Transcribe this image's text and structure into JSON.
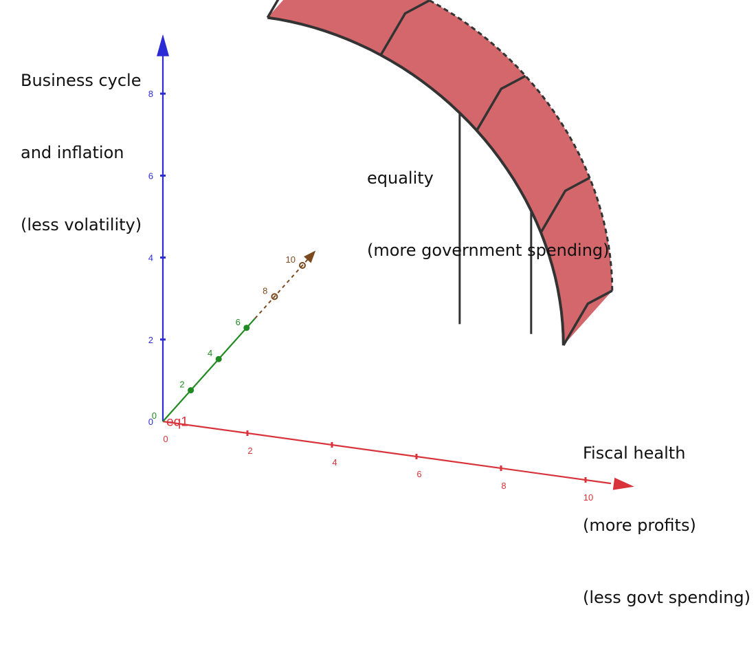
{
  "chart_data": {
    "type": "surface3d",
    "title": "",
    "annotations": {
      "z_axis_label": [
        "Business cycle",
        "and inflation",
        "(less volatility)"
      ],
      "y_axis_label": [
        "equality",
        "(more government spending)"
      ],
      "x_axis_label": [
        "Fiscal health",
        "(more profits)",
        "(less govt spending)"
      ],
      "object_label": "eq1"
    },
    "axes": {
      "x": {
        "color": "#d9323a",
        "ticks": [
          "0",
          "2",
          "4",
          "6",
          "8",
          "10"
        ],
        "range": [
          0,
          10.6
        ]
      },
      "y": {
        "color": "#1f8a1f",
        "ticks": [
          "0",
          "2",
          "4",
          "6"
        ],
        "range": [
          0,
          6.6
        ]
      },
      "y_hidden": {
        "color": "#7a4a1e",
        "ticks": [
          "8",
          "10"
        ],
        "range": [
          6.6,
          10.6
        ]
      },
      "z": {
        "color": "#2b2bd6",
        "ticks": [
          "0",
          "2",
          "4",
          "6",
          "8"
        ],
        "range": [
          0,
          9.3
        ]
      }
    },
    "surface": {
      "name": "eq1",
      "shape": "quarter shell of radius about 7, offset along y",
      "radius": 7,
      "y_range": [
        7.5,
        11
      ],
      "fill": "#c9464a",
      "edge": "#333333"
    }
  }
}
